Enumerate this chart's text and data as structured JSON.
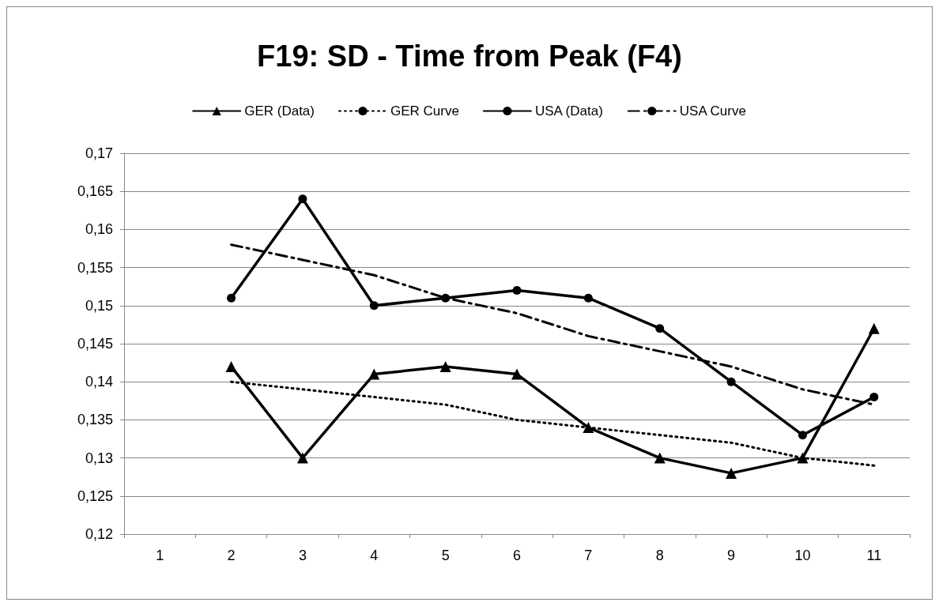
{
  "chart_data": {
    "type": "line",
    "title": "F19: SD - Time from Peak (F4)",
    "categories": [
      "1",
      "2",
      "3",
      "4",
      "5",
      "6",
      "7",
      "8",
      "9",
      "10",
      "11"
    ],
    "series": [
      {
        "name": "GER (Data)",
        "color": "#000000",
        "marker": "triangle",
        "line_style": "solid",
        "values": [
          null,
          0.142,
          0.13,
          0.141,
          0.142,
          0.141,
          0.134,
          0.13,
          0.128,
          0.13,
          0.147
        ]
      },
      {
        "name": "GER Curve",
        "color": "#000000",
        "marker": "none",
        "line_style": "dotted",
        "values": [
          null,
          0.14,
          0.139,
          0.138,
          0.137,
          0.135,
          0.134,
          0.133,
          0.132,
          0.13,
          0.129
        ]
      },
      {
        "name": "USA (Data)",
        "color": "#000000",
        "marker": "circle",
        "line_style": "solid",
        "values": [
          null,
          0.151,
          0.164,
          0.15,
          0.151,
          0.152,
          0.151,
          0.147,
          0.14,
          0.133,
          0.138
        ]
      },
      {
        "name": "USA Curve",
        "color": "#000000",
        "marker": "none",
        "line_style": "dashed",
        "values": [
          null,
          0.158,
          0.156,
          0.154,
          0.151,
          0.149,
          0.146,
          0.144,
          0.142,
          0.139,
          0.137
        ]
      }
    ],
    "ylim": [
      0.12,
      0.17
    ],
    "yticks": [
      {
        "value": 0.12,
        "label": "0,12"
      },
      {
        "value": 0.125,
        "label": "0,125"
      },
      {
        "value": 0.13,
        "label": "0,13"
      },
      {
        "value": 0.135,
        "label": "0,135"
      },
      {
        "value": 0.14,
        "label": "0,14"
      },
      {
        "value": 0.145,
        "label": "0,145"
      },
      {
        "value": 0.15,
        "label": "0,15"
      },
      {
        "value": 0.155,
        "label": "0,155"
      },
      {
        "value": 0.16,
        "label": "0,16"
      },
      {
        "value": 0.165,
        "label": "0,165"
      },
      {
        "value": 0.17,
        "label": "0,17"
      }
    ],
    "grid": "y",
    "legend": "top"
  }
}
